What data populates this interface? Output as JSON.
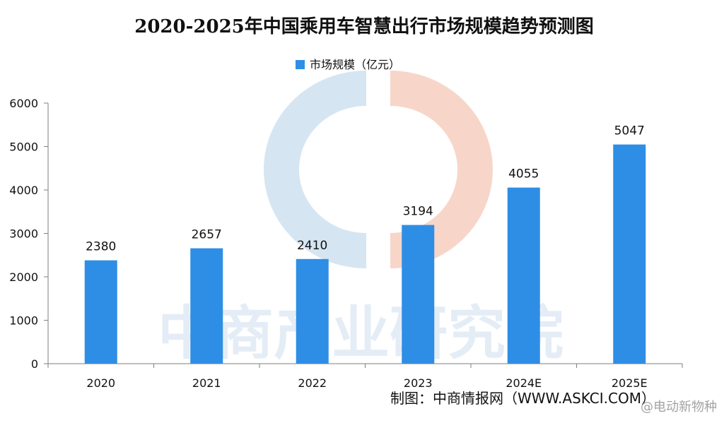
{
  "chart_data": {
    "type": "bar",
    "title": "2020-2025年中国乘用车智慧出行市场规模趋势预测图",
    "categories": [
      "2020",
      "2021",
      "2022",
      "2023",
      "2024E",
      "2025E"
    ],
    "series": [
      {
        "name": "市场规模（亿元）",
        "values": [
          2380,
          2657,
          2410,
          3194,
          4055,
          5047
        ]
      }
    ],
    "ylim": [
      0,
      6000
    ],
    "yticks": [
      "0",
      "1000",
      "2000",
      "3000",
      "4000",
      "5000",
      "6000"
    ],
    "xlabel": "",
    "ylabel": "",
    "legend_position": "top-left",
    "grid": false,
    "bar_color": "#2e8ee6",
    "data_labels": true
  },
  "watermark": {
    "text": "中商产业研究院",
    "left_color": "#c9dcee",
    "right_color": "#f4c9b9"
  },
  "source": "制图：中商情报网（WWW.ASKCI.COM）",
  "weibo_tag": "@电动新物种"
}
